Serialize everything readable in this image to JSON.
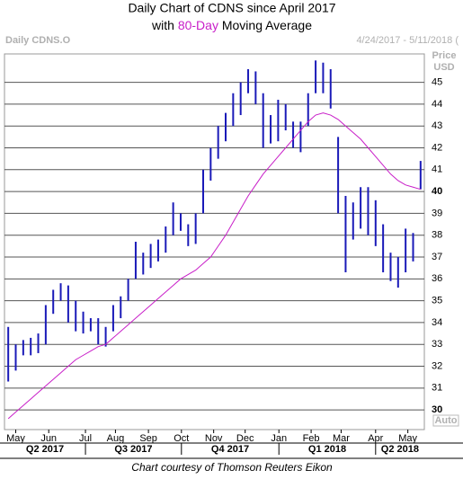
{
  "chart_data": {
    "type": "hilo",
    "title": "Daily Chart of CDNS since April 2017",
    "subtitle_parts": [
      "with ",
      "80-Day",
      " Moving Average"
    ],
    "symbol_label": "Daily CDNS.O",
    "date_range": "4/24/2017 - 5/11/2018 (",
    "axis_unit": [
      "Price",
      "USD"
    ],
    "scale_mode": "Auto",
    "footer": "Chart courtesy of Thomson Reuters Eikon",
    "categories": [
      null,
      null,
      null,
      null,
      null,
      null,
      null,
      null,
      null,
      null,
      null,
      null,
      null,
      null,
      null,
      null,
      null,
      null,
      null,
      null,
      null,
      null,
      null,
      null,
      null,
      null,
      null,
      null,
      null,
      null,
      null,
      null,
      null,
      null,
      null,
      null,
      null,
      null,
      null,
      null,
      null,
      null,
      null,
      null,
      null,
      null,
      null,
      null,
      null,
      null,
      null,
      null,
      null,
      null,
      null,
      null
    ],
    "series": [
      {
        "name": "CDNS.O",
        "color": "#1a1ab8",
        "high": [
          33.8,
          33.0,
          33.2,
          33.3,
          33.5,
          34.8,
          35.5,
          35.8,
          35.7,
          35.0,
          34.5,
          34.2,
          34.2,
          33.8,
          34.8,
          35.2,
          36.0,
          37.7,
          37.2,
          37.6,
          37.8,
          38.4,
          39.5,
          39.0,
          38.5,
          39.0,
          41.0,
          42.0,
          43.0,
          43.6,
          44.5,
          45.0,
          45.6,
          45.5,
          44.5,
          43.5,
          44.2,
          44.0,
          43.2,
          43.2,
          44.5,
          46.0,
          45.9,
          45.6,
          42.5,
          39.8,
          39.5,
          40.2,
          40.2,
          39.6,
          38.5,
          37.2,
          37.0,
          38.3,
          38.1,
          41.4
        ],
        "low": [
          31.3,
          31.8,
          32.5,
          32.5,
          32.6,
          33.0,
          34.4,
          35.0,
          34.0,
          33.6,
          33.5,
          33.6,
          33.0,
          32.9,
          33.6,
          34.2,
          35.0,
          36.0,
          36.2,
          36.5,
          36.8,
          37.2,
          38.0,
          38.2,
          37.5,
          37.6,
          39.0,
          40.5,
          41.5,
          42.3,
          43.0,
          43.5,
          44.5,
          44.0,
          42.0,
          42.2,
          42.3,
          42.8,
          42.0,
          41.8,
          43.0,
          44.5,
          44.5,
          43.8,
          39.0,
          36.3,
          37.8,
          38.3,
          38.0,
          37.5,
          36.3,
          35.9,
          35.6,
          36.3,
          36.8,
          40.1
        ]
      },
      {
        "name": "80-Day Moving Average",
        "color": "#c81ec8",
        "values": [
          29.6,
          29.9,
          30.2,
          30.5,
          30.8,
          31.1,
          31.4,
          31.7,
          32.0,
          32.3,
          32.5,
          32.7,
          32.9,
          33.0,
          33.3,
          33.6,
          33.9,
          34.2,
          34.5,
          34.8,
          35.1,
          35.4,
          35.7,
          36.0,
          36.2,
          36.4,
          36.7,
          37.0,
          37.5,
          38.0,
          38.6,
          39.2,
          39.8,
          40.3,
          40.8,
          41.2,
          41.6,
          42.0,
          42.4,
          42.8,
          43.2,
          43.5,
          43.6,
          43.5,
          43.3,
          43.0,
          42.7,
          42.4,
          42.0,
          41.6,
          41.2,
          40.8,
          40.5,
          40.3,
          40.2,
          40.1
        ]
      }
    ],
    "ylim": [
      29.1,
      46.3
    ],
    "yticks": [
      30,
      31,
      32,
      33,
      34,
      35,
      36,
      37,
      38,
      39,
      40,
      41,
      42,
      43,
      44,
      45
    ],
    "xticks": [
      {
        "value": 1,
        "label": "May"
      },
      {
        "value": 5.4,
        "label": "Jun"
      },
      {
        "value": 10.3,
        "label": "Jul"
      },
      {
        "value": 14.3,
        "label": "Aug"
      },
      {
        "value": 18.7,
        "label": "Sep"
      },
      {
        "value": 23.1,
        "label": "Oct"
      },
      {
        "value": 27.4,
        "label": "Nov"
      },
      {
        "value": 31.6,
        "label": "Dec"
      },
      {
        "value": 36.1,
        "label": "Jan"
      },
      {
        "value": 40.4,
        "label": "Feb"
      },
      {
        "value": 44.4,
        "label": "Mar"
      },
      {
        "value": 49.0,
        "label": "Apr"
      },
      {
        "value": 53.3,
        "label": "May"
      }
    ],
    "quarters": [
      "Q2 2017",
      "Q3 2017",
      "Q4 2017",
      "Q1 2018",
      "Q2 2018"
    ],
    "grid": true
  }
}
